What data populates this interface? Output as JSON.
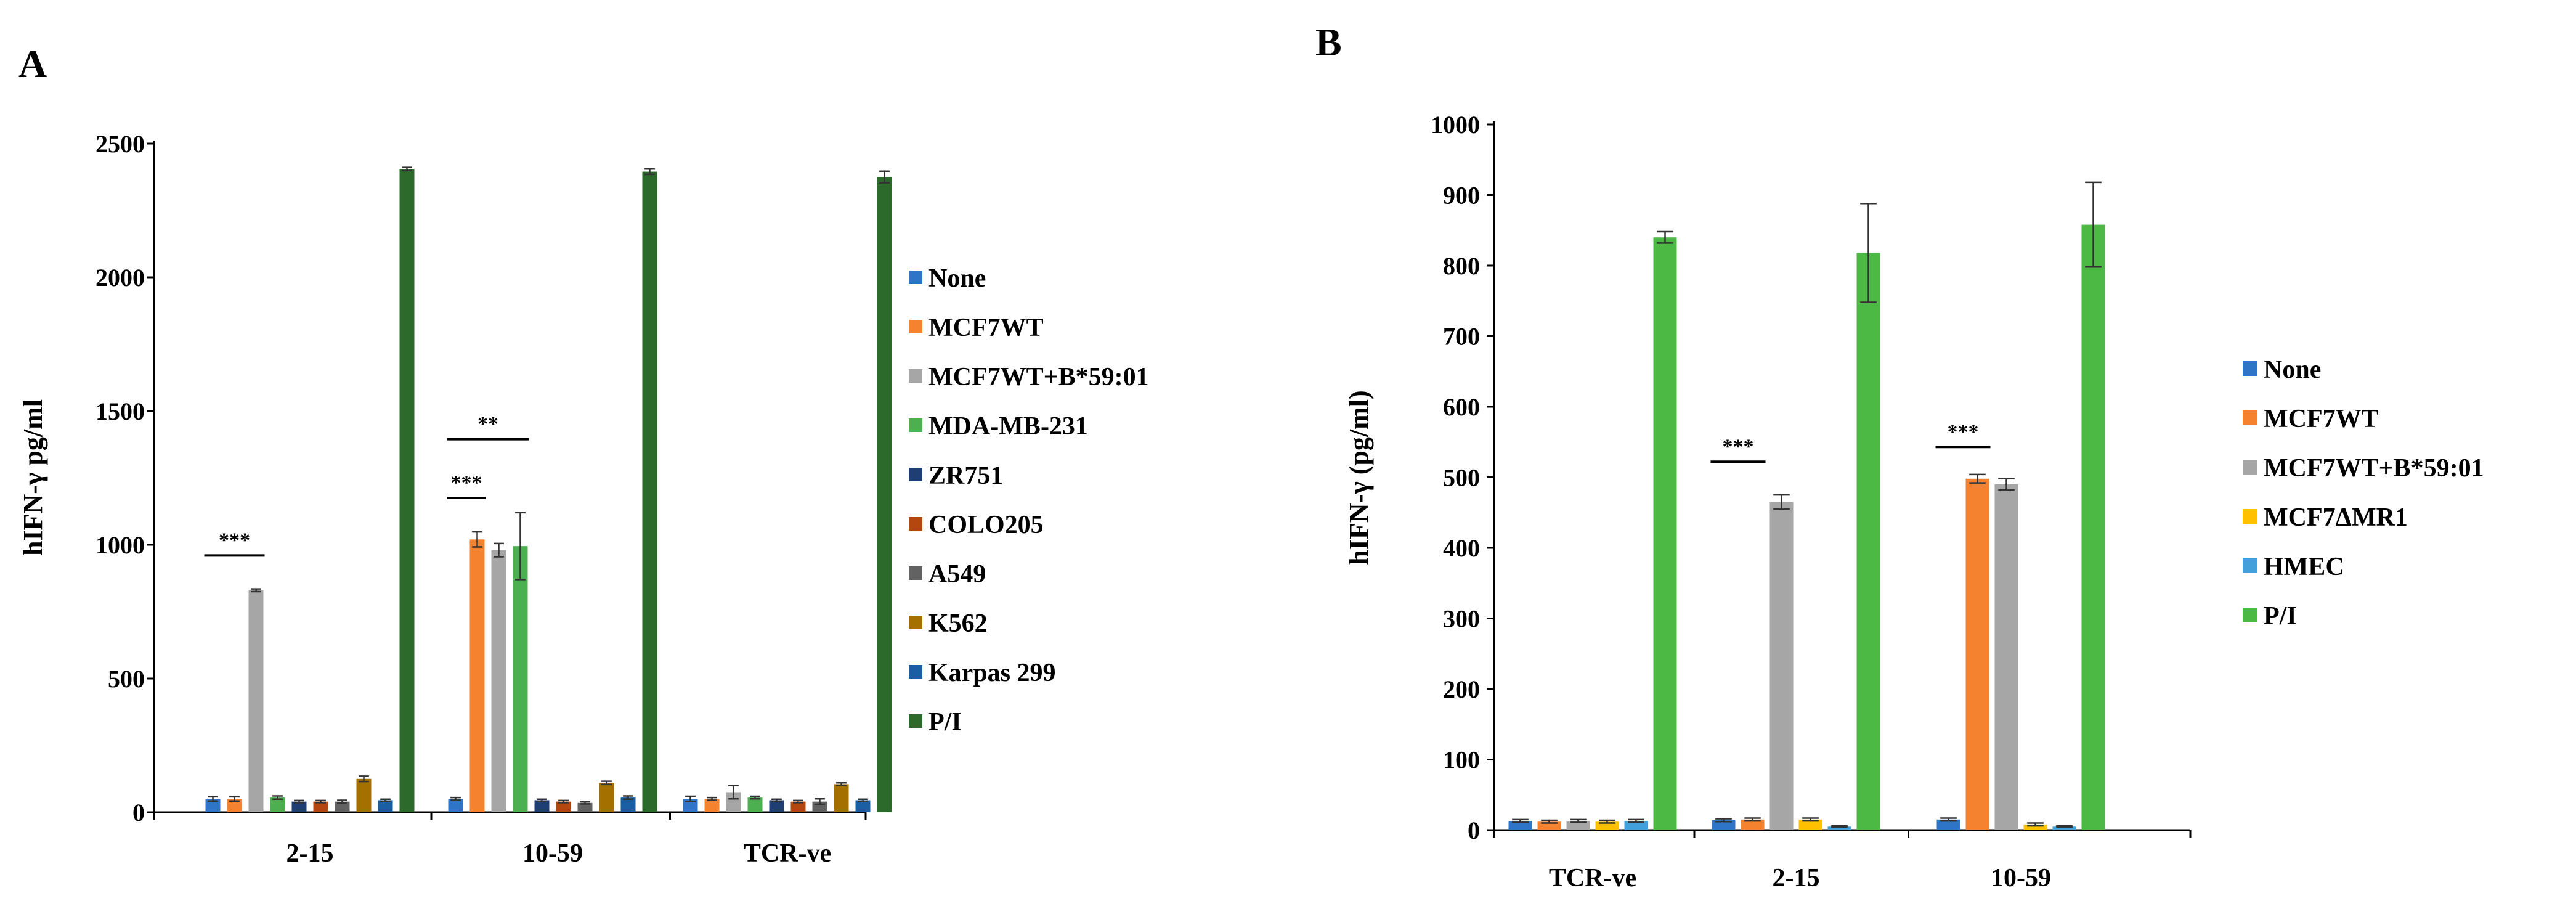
{
  "chart_data": [
    {
      "panel": "A",
      "type": "bar",
      "title": "",
      "xlabel": "",
      "ylabel": "hIFN-γ pg/ml",
      "ylim": [
        0,
        2500
      ],
      "yticks": [
        "0",
        "500",
        "1000",
        "1500",
        "2000",
        "2500"
      ],
      "yticks_values": [
        0,
        500,
        1000,
        1500,
        2000,
        2500
      ],
      "categories": [
        "2-15",
        "10-59",
        "TCR-ve"
      ],
      "legend_position": "right",
      "series": [
        {
          "name": "None",
          "color": "#2E75C8",
          "values": [
            50,
            50,
            50
          ],
          "errors": [
            8,
            5,
            10
          ]
        },
        {
          "name": "MCF7WT",
          "color": "#F5822F",
          "values": [
            50,
            1020,
            50
          ],
          "errors": [
            8,
            28,
            5
          ]
        },
        {
          "name": "MCF7WT+B*59:01",
          "color": "#A6A6A6",
          "values": [
            830,
            980,
            75
          ],
          "errors": [
            5,
            25,
            25
          ]
        },
        {
          "name": "MDA-MB-231",
          "color": "#4CAF50",
          "values": [
            55,
            995,
            55
          ],
          "errors": [
            6,
            125,
            5
          ]
        },
        {
          "name": "ZR751",
          "color": "#1F3E73",
          "values": [
            40,
            45,
            45
          ],
          "errors": [
            4,
            4,
            4
          ]
        },
        {
          "name": "COLO205",
          "color": "#B4470F",
          "values": [
            40,
            40,
            40
          ],
          "errors": [
            4,
            4,
            4
          ]
        },
        {
          "name": "A549",
          "color": "#626262",
          "values": [
            40,
            35,
            40
          ],
          "errors": [
            5,
            4,
            10
          ]
        },
        {
          "name": "K562",
          "color": "#A47100",
          "values": [
            125,
            110,
            105
          ],
          "errors": [
            10,
            6,
            5
          ]
        },
        {
          "name": "Karpas 299",
          "color": "#1A5FA3",
          "values": [
            45,
            55,
            45
          ],
          "errors": [
            4,
            6,
            4
          ]
        },
        {
          "name": "P/I",
          "color": "#2B6A2B",
          "values": [
            2405,
            2395,
            2375
          ],
          "errors": [
            6,
            10,
            22
          ]
        }
      ],
      "annotations": [
        {
          "text": "***",
          "category": "2-15",
          "from_series": "None",
          "to_series": "MCF7WT+B*59:01",
          "y": 960
        },
        {
          "text": "***",
          "category": "10-59",
          "from_series": "None",
          "to_series": "MCF7WT",
          "y": 1175
        },
        {
          "text": "**",
          "category": "10-59",
          "from_series": "None",
          "to_series": "MDA-MB-231",
          "y": 1395
        }
      ]
    },
    {
      "panel": "B",
      "type": "bar",
      "title": "",
      "xlabel": "",
      "ylabel": "hIFN-γ (pg/ml)",
      "ylim": [
        0,
        1000
      ],
      "yticks": [
        "0",
        "100",
        "200",
        "300",
        "400",
        "500",
        "600",
        "700",
        "800",
        "900",
        "1000"
      ],
      "yticks_values": [
        0,
        100,
        200,
        300,
        400,
        500,
        600,
        700,
        800,
        900,
        1000
      ],
      "categories": [
        "TCR-ve",
        "2-15",
        "10-59"
      ],
      "legend_position": "right",
      "series": [
        {
          "name": "None",
          "color": "#2E75C8",
          "values": [
            13,
            14,
            15
          ],
          "errors": [
            2,
            2,
            2
          ]
        },
        {
          "name": "MCF7WT",
          "color": "#F5822F",
          "values": [
            12,
            15,
            498
          ],
          "errors": [
            2,
            2,
            6
          ]
        },
        {
          "name": "MCF7WT+B*59:01",
          "color": "#A6A6A6",
          "values": [
            13,
            465,
            490
          ],
          "errors": [
            2,
            10,
            8
          ]
        },
        {
          "name": "MCF7ΔMR1",
          "color": "#FFC000",
          "values": [
            12,
            15,
            8
          ],
          "errors": [
            2,
            2,
            2
          ]
        },
        {
          "name": "HMEC",
          "color": "#44A0DA",
          "values": [
            13,
            5,
            5
          ],
          "errors": [
            2,
            1,
            1
          ]
        },
        {
          "name": "P/I",
          "color": "#4CB944",
          "values": [
            840,
            818,
            858
          ],
          "errors": [
            8,
            70,
            60
          ]
        }
      ],
      "annotations": [
        {
          "text": "***",
          "category": "2-15",
          "from_series": "None",
          "to_series": "MCF7WT",
          "y": 522
        },
        {
          "text": "***",
          "category": "10-59",
          "from_series": "None",
          "to_series": "MCF7WT",
          "y": 543
        }
      ]
    }
  ],
  "panels": {
    "a_label": "A",
    "b_label": "B"
  }
}
